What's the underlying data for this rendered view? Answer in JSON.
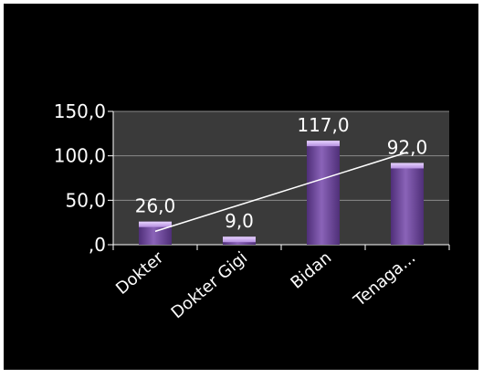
{
  "chart_data": {
    "type": "bar",
    "categories": [
      "Dokter",
      "Dokter Gigi",
      "Bidan",
      "Tenaga..."
    ],
    "values": [
      26.0,
      9.0,
      117.0,
      92.0
    ],
    "data_labels": [
      "26,0",
      "9,0",
      "117,0",
      "92,0"
    ],
    "y_ticks": [
      {
        "value": 0,
        "label": ",0"
      },
      {
        "value": 50,
        "label": "50,0"
      },
      {
        "value": 100,
        "label": "100,0"
      },
      {
        "value": 150,
        "label": "150,0"
      }
    ],
    "ylim": [
      0,
      150
    ],
    "grid": true,
    "trendline": {
      "type": "linear",
      "color": "#ffffff",
      "from": 15,
      "to": 104
    },
    "colors": {
      "page_background": "#ffffff",
      "chart_background": "#000000",
      "plot_area": "#3a3a3a",
      "bar": "#8a63b8",
      "bar_light": "#c9a6ef",
      "bar_dark": "#4f2f78",
      "text": "#ffffff",
      "gridline": "#8a8a8a"
    }
  }
}
